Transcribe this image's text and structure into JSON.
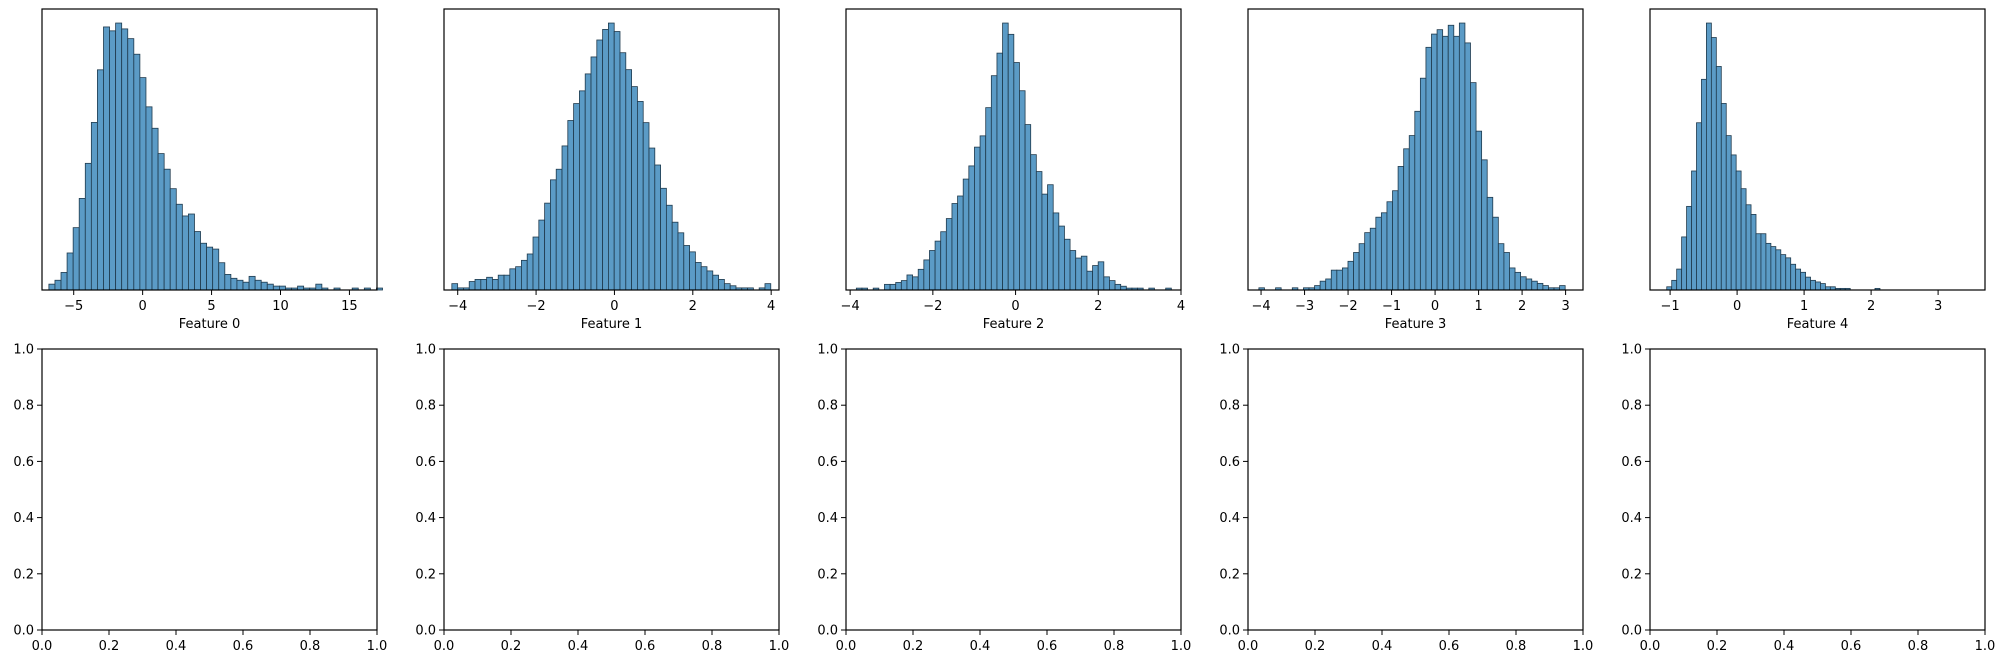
{
  "chart_data": [
    {
      "type": "bar",
      "subtype": "histogram",
      "xlabel": "Feature 0",
      "xlim": [
        -7.3,
        17.0
      ],
      "xticks": [
        -5,
        0,
        5,
        10,
        15
      ],
      "xtick_labels": [
        "−5",
        "0",
        "5",
        "10",
        "15"
      ],
      "y_axis_visible": false,
      "bin_start": -6.8,
      "bin_width": 0.44,
      "counts": [
        3,
        5,
        9,
        19,
        32,
        47,
        65,
        86,
        113,
        135,
        133,
        137,
        134,
        129,
        121,
        109,
        94,
        83,
        70,
        62,
        52,
        44,
        38,
        39,
        30,
        24,
        22,
        21,
        14,
        8,
        6,
        5,
        4,
        7,
        5,
        4,
        3,
        2,
        2,
        1,
        1,
        2,
        1,
        1,
        3,
        1,
        0,
        1,
        0,
        0,
        1,
        0,
        1,
        0,
        1,
        0
      ]
    },
    {
      "type": "bar",
      "subtype": "histogram",
      "xlabel": "Feature 1",
      "xlim": [
        -4.35,
        4.2
      ],
      "xticks": [
        -4,
        -2,
        0,
        2,
        4
      ],
      "xtick_labels": [
        "−4",
        "−2",
        "0",
        "2",
        "4"
      ],
      "y_axis_visible": false,
      "bin_start": -4.15,
      "bin_width": 0.148,
      "counts": [
        3,
        1,
        1,
        4,
        5,
        5,
        6,
        5,
        7,
        7,
        10,
        11,
        14,
        17,
        25,
        33,
        41,
        52,
        57,
        68,
        80,
        88,
        94,
        102,
        110,
        118,
        123,
        126,
        122,
        112,
        104,
        96,
        89,
        79,
        67,
        59,
        48,
        40,
        32,
        27,
        21,
        18,
        13,
        11,
        9,
        7,
        5,
        3,
        2,
        1,
        1,
        1,
        0,
        1,
        3,
        0
      ]
    },
    {
      "type": "bar",
      "subtype": "histogram",
      "xlabel": "Feature 2",
      "xlim": [
        -4.1,
        4.0
      ],
      "xticks": [
        -4,
        -2,
        0,
        2,
        4
      ],
      "xtick_labels": [
        "−4",
        "−2",
        "0",
        "2",
        "4"
      ],
      "y_axis_visible": false,
      "bin_start": -3.85,
      "bin_width": 0.136,
      "counts": [
        1,
        1,
        0,
        1,
        0,
        3,
        3,
        4,
        5,
        8,
        7,
        11,
        16,
        21,
        26,
        31,
        38,
        46,
        50,
        59,
        66,
        76,
        82,
        97,
        114,
        126,
        142,
        136,
        121,
        106,
        88,
        72,
        63,
        51,
        56,
        41,
        34,
        27,
        21,
        17,
        18,
        10,
        13,
        15,
        7,
        5,
        3,
        2,
        1,
        1,
        1,
        0,
        1,
        0,
        0,
        1
      ]
    },
    {
      "type": "bar",
      "subtype": "histogram",
      "xlabel": "Feature 3",
      "xlim": [
        -4.3,
        3.4
      ],
      "xticks": [
        -4,
        -3,
        -2,
        -1,
        0,
        1,
        2,
        3
      ],
      "xtick_labels": [
        "−4",
        "−3",
        "−2",
        "−1",
        "0",
        "1",
        "2",
        "3"
      ],
      "y_axis_visible": false,
      "bin_start": -4.05,
      "bin_width": 0.128,
      "counts": [
        1,
        0,
        0,
        1,
        0,
        0,
        1,
        0,
        1,
        1,
        2,
        4,
        5,
        9,
        9,
        10,
        13,
        17,
        21,
        26,
        28,
        33,
        35,
        40,
        45,
        56,
        64,
        70,
        81,
        96,
        110,
        116,
        118,
        115,
        120,
        115,
        121,
        112,
        94,
        72,
        59,
        42,
        33,
        21,
        17,
        10,
        8,
        6,
        5,
        4,
        3,
        2,
        1,
        1,
        2,
        0
      ]
    },
    {
      "type": "bar",
      "subtype": "histogram",
      "xlabel": "Feature 4",
      "xlim": [
        -1.3,
        3.7
      ],
      "xticks": [
        -1,
        0,
        1,
        2,
        3
      ],
      "xtick_labels": [
        "−1",
        "0",
        "1",
        "2",
        "3"
      ],
      "y_axis_visible": false,
      "bin_start": -1.05,
      "bin_width": 0.074,
      "counts": [
        2,
        6,
        13,
        33,
        52,
        74,
        104,
        131,
        166,
        157,
        139,
        116,
        96,
        84,
        74,
        63,
        53,
        47,
        35,
        35,
        29,
        27,
        25,
        22,
        20,
        16,
        13,
        11,
        8,
        6,
        5,
        4,
        2,
        2,
        1,
        1,
        1,
        0,
        0,
        0,
        0,
        0,
        1,
        0,
        0,
        0,
        0,
        0,
        0,
        0,
        0,
        0,
        0,
        0,
        0,
        0
      ]
    },
    {
      "type": "empty",
      "xlim": [
        0,
        1
      ],
      "ylim": [
        0,
        1
      ],
      "xticks": [
        "0.0",
        "0.2",
        "0.4",
        "0.6",
        "0.8",
        "1.0"
      ],
      "yticks": [
        "0.0",
        "0.2",
        "0.4",
        "0.6",
        "0.8",
        "1.0"
      ]
    },
    {
      "type": "empty",
      "xlim": [
        0,
        1
      ],
      "ylim": [
        0,
        1
      ],
      "xticks": [
        "0.0",
        "0.2",
        "0.4",
        "0.6",
        "0.8",
        "1.0"
      ],
      "yticks": [
        "0.0",
        "0.2",
        "0.4",
        "0.6",
        "0.8",
        "1.0"
      ]
    },
    {
      "type": "empty",
      "xlim": [
        0,
        1
      ],
      "ylim": [
        0,
        1
      ],
      "xticks": [
        "0.0",
        "0.2",
        "0.4",
        "0.6",
        "0.8",
        "1.0"
      ],
      "yticks": [
        "0.0",
        "0.2",
        "0.4",
        "0.6",
        "0.8",
        "1.0"
      ]
    },
    {
      "type": "empty",
      "xlim": [
        0,
        1
      ],
      "ylim": [
        0,
        1
      ],
      "xticks": [
        "0.0",
        "0.2",
        "0.4",
        "0.6",
        "0.8",
        "1.0"
      ],
      "yticks": [
        "0.0",
        "0.2",
        "0.4",
        "0.6",
        "0.8",
        "1.0"
      ]
    },
    {
      "type": "empty",
      "xlim": [
        0,
        1
      ],
      "ylim": [
        0,
        1
      ],
      "xticks": [
        "0.0",
        "0.2",
        "0.4",
        "0.6",
        "0.8",
        "1.0"
      ],
      "yticks": [
        "0.0",
        "0.2",
        "0.4",
        "0.6",
        "0.8",
        "1.0"
      ]
    }
  ],
  "colors": {
    "bar_fill": "#5b9bc6",
    "bar_edge": "#1f3a4d",
    "axis": "#000000"
  }
}
